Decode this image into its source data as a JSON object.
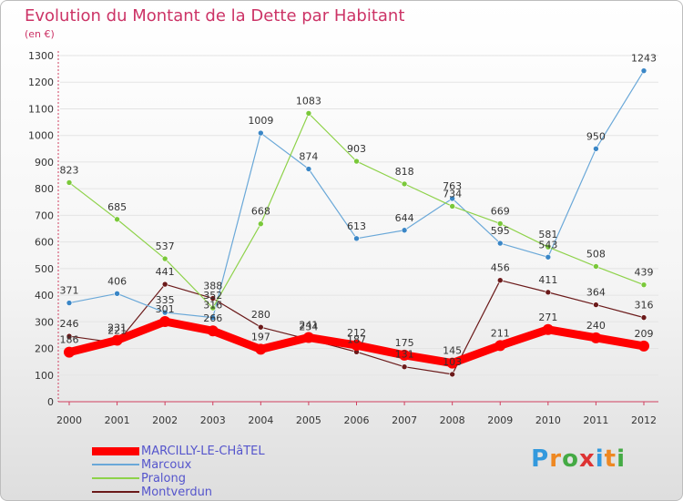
{
  "title": "Evolution du Montant de la Dette par Habitant",
  "subtitle": "(en €)",
  "colors": {
    "title": "#cc3366",
    "axis": "#d04060",
    "grid": "#e4e4e4"
  },
  "logo": {
    "text": "Proxiti",
    "letter_colors": [
      "#3399dd",
      "#ee8822",
      "#44aa44",
      "#dd3333",
      "#3399dd",
      "#ee8822",
      "#44aa44"
    ]
  },
  "chart_data": {
    "type": "line",
    "title": "Evolution du Montant de la Dette par Habitant",
    "subtitle": "(en €)",
    "x": [
      "2000",
      "2001",
      "2002",
      "2003",
      "2004",
      "2005",
      "2006",
      "2007",
      "2008",
      "2009",
      "2010",
      "2011",
      "2012"
    ],
    "ylim": [
      0,
      1300
    ],
    "yticks": [
      0,
      100,
      200,
      300,
      400,
      500,
      600,
      700,
      800,
      900,
      1000,
      1100,
      1200,
      1300
    ],
    "grid": true,
    "legend_position": "bottom-left",
    "series": [
      {
        "name": "Montverdun",
        "color": "#6b1a1a",
        "marker": "#6b1a1a",
        "width": 1.2,
        "values": [
          246,
          221,
          441,
          388,
          280,
          234,
          187,
          131,
          103,
          456,
          411,
          364,
          316
        ]
      },
      {
        "name": "Marcoux",
        "color": "#6aa8d8",
        "marker": "#3a86c6",
        "width": 1.2,
        "values": [
          371,
          406,
          335,
          316,
          1009,
          874,
          613,
          644,
          763,
          595,
          543,
          950,
          1243
        ]
      },
      {
        "name": "Pralong",
        "color": "#8ed24a",
        "marker": "#7ac83a",
        "width": 1.2,
        "values": [
          823,
          685,
          537,
          352,
          668,
          1083,
          903,
          818,
          734,
          669,
          581,
          508,
          439
        ]
      },
      {
        "name": "MARCILLY-LE-CHâTEL",
        "color": "#ff0000",
        "marker": "#ff0000",
        "width": 9,
        "values": [
          186,
          231,
          301,
          266,
          197,
          241,
          212,
          175,
          145,
          211,
          271,
          240,
          209
        ]
      }
    ],
    "legend": [
      "MARCILLY-LE-CHâTEL",
      "Marcoux",
      "Pralong",
      "Montverdun"
    ]
  }
}
